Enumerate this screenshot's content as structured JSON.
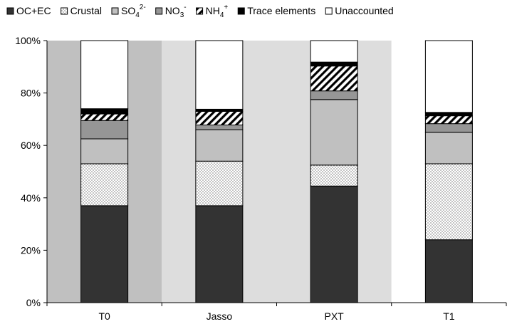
{
  "chart_data": {
    "type": "bar",
    "stacked": true,
    "percent": true,
    "categories": [
      "T0",
      "Jasso",
      "PXT",
      "T1"
    ],
    "series": [
      {
        "name": "OC+EC",
        "values": [
          37.0,
          37.0,
          44.5,
          24.0
        ],
        "fill": "#333333",
        "pattern": "solid"
      },
      {
        "name": "Crustal",
        "values": [
          16.0,
          17.0,
          8.0,
          29.0
        ],
        "fill": "#ffffff",
        "pattern": "dots"
      },
      {
        "name": "SO4 2-",
        "values": [
          9.5,
          12.0,
          25.0,
          12.0
        ],
        "fill": "#c0c0c0",
        "pattern": "solid"
      },
      {
        "name": "NO3 -",
        "values": [
          7.0,
          1.8,
          3.3,
          3.3
        ],
        "fill": "#969696",
        "pattern": "solid"
      },
      {
        "name": "NH4 +",
        "values": [
          2.5,
          5.2,
          9.5,
          3.0
        ],
        "fill": "#ffffff",
        "pattern": "hatch"
      },
      {
        "name": "Trace elements",
        "values": [
          2.0,
          0.8,
          1.5,
          1.3
        ],
        "fill": "#000000",
        "pattern": "solid"
      },
      {
        "name": "Unaccounted",
        "values": [
          26.0,
          26.2,
          8.2,
          27.4
        ],
        "fill": "#ffffff",
        "pattern": "solid"
      }
    ],
    "legend_items": [
      {
        "main": "OC+EC",
        "sub": "",
        "sup": ""
      },
      {
        "main": "Crustal",
        "sub": "",
        "sup": ""
      },
      {
        "main": "SO",
        "sub": "4",
        "sup": "2-"
      },
      {
        "main": "NO",
        "sub": "3",
        "sup": "-"
      },
      {
        "main": "NH",
        "sub": "4",
        "sup": "+"
      },
      {
        "main": "Trace elements",
        "sub": "",
        "sup": ""
      },
      {
        "main": "Unaccounted",
        "sub": "",
        "sup": ""
      }
    ],
    "background_bands": [
      "#c0c0c0",
      "#dddddd",
      "#dddddd",
      "#ffffff"
    ],
    "y_ticks": [
      "0%",
      "20%",
      "40%",
      "60%",
      "80%",
      "100%"
    ],
    "ylim": [
      0,
      100
    ],
    "legend_position": "top",
    "grid": false,
    "title": "",
    "xlabel": "",
    "ylabel": ""
  }
}
